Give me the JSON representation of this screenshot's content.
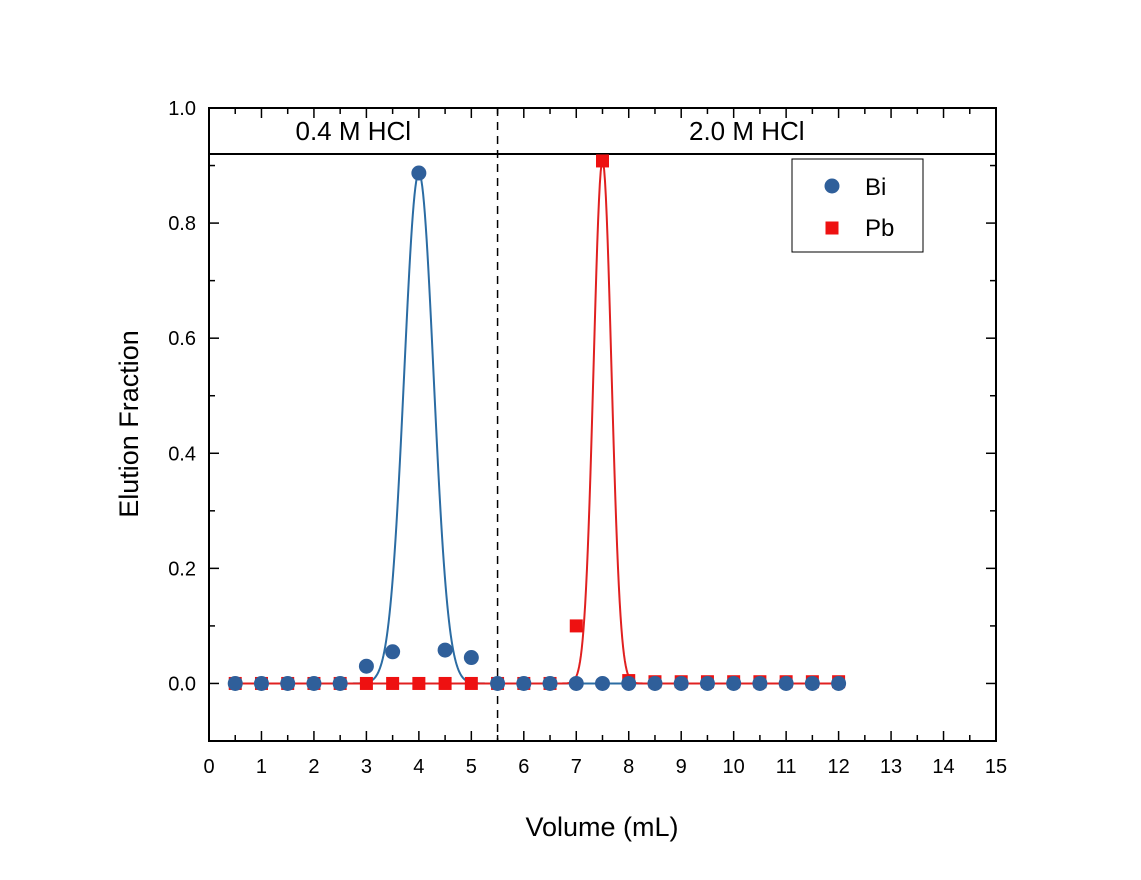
{
  "chart_data": {
    "type": "scatter",
    "xlabel": "Volume (mL)",
    "ylabel": "Elution Fraction",
    "xlim": [
      0,
      15
    ],
    "ylim": [
      -0.1,
      1.0
    ],
    "x_ticks": [
      0,
      1,
      2,
      3,
      4,
      5,
      6,
      7,
      8,
      9,
      10,
      11,
      12,
      13,
      14,
      15
    ],
    "y_ticks": [
      0.0,
      0.2,
      0.4,
      0.6,
      0.8,
      1.0
    ],
    "y_tick_labels": [
      "0.0",
      "0.2",
      "0.4",
      "0.6",
      "0.8",
      "1.0"
    ],
    "grid": false,
    "legend_position": "top-right",
    "regions": [
      {
        "label": "0.4 M HCl",
        "x_start": 0,
        "x_end": 5.5
      },
      {
        "label": "2.0 M HCl",
        "x_start": 5.5,
        "x_end": 15
      }
    ],
    "divider_x": 5.5,
    "region_band_y": 0.92,
    "series": [
      {
        "name": "Bi",
        "marker": "circle",
        "color": "#2F5F9A",
        "x": [
          0.5,
          1,
          1.5,
          2,
          2.5,
          3,
          3.5,
          4,
          4.5,
          5,
          5.5,
          6,
          6.5,
          7,
          7.5,
          8,
          8.5,
          9,
          9.5,
          10,
          10.5,
          11,
          11.5,
          12
        ],
        "y": [
          0,
          0,
          0,
          0,
          0,
          0.03,
          0.055,
          0.887,
          0.058,
          0.045,
          0,
          0,
          0,
          0,
          0,
          0,
          0,
          0,
          0,
          0,
          0,
          0,
          0,
          0
        ],
        "fit": {
          "type": "gaussian",
          "center": 4.0,
          "amplitude": 0.887,
          "sigma": 0.28,
          "x_range": [
            0.5,
            12
          ],
          "color": "#2B6CA3"
        }
      },
      {
        "name": "Pb",
        "marker": "square",
        "color": "#EE1111",
        "x": [
          0.5,
          1,
          1.5,
          2,
          2.5,
          3,
          3.5,
          4,
          4.5,
          5,
          5.5,
          6,
          6.5,
          7,
          7.5,
          8,
          8.5,
          9,
          9.5,
          10,
          10.5,
          11,
          11.5,
          12
        ],
        "y": [
          0,
          0,
          0,
          0,
          0,
          0,
          0,
          0,
          0,
          0,
          0,
          0,
          0,
          0.1,
          0.908,
          0.005,
          0.003,
          0.003,
          0.003,
          0.003,
          0.003,
          0.003,
          0.003,
          0.003
        ],
        "fit": {
          "type": "gaussian",
          "center": 7.5,
          "amplitude": 0.908,
          "sigma": 0.17,
          "x_range": [
            0.5,
            12
          ],
          "color": "#E02020"
        }
      }
    ]
  }
}
